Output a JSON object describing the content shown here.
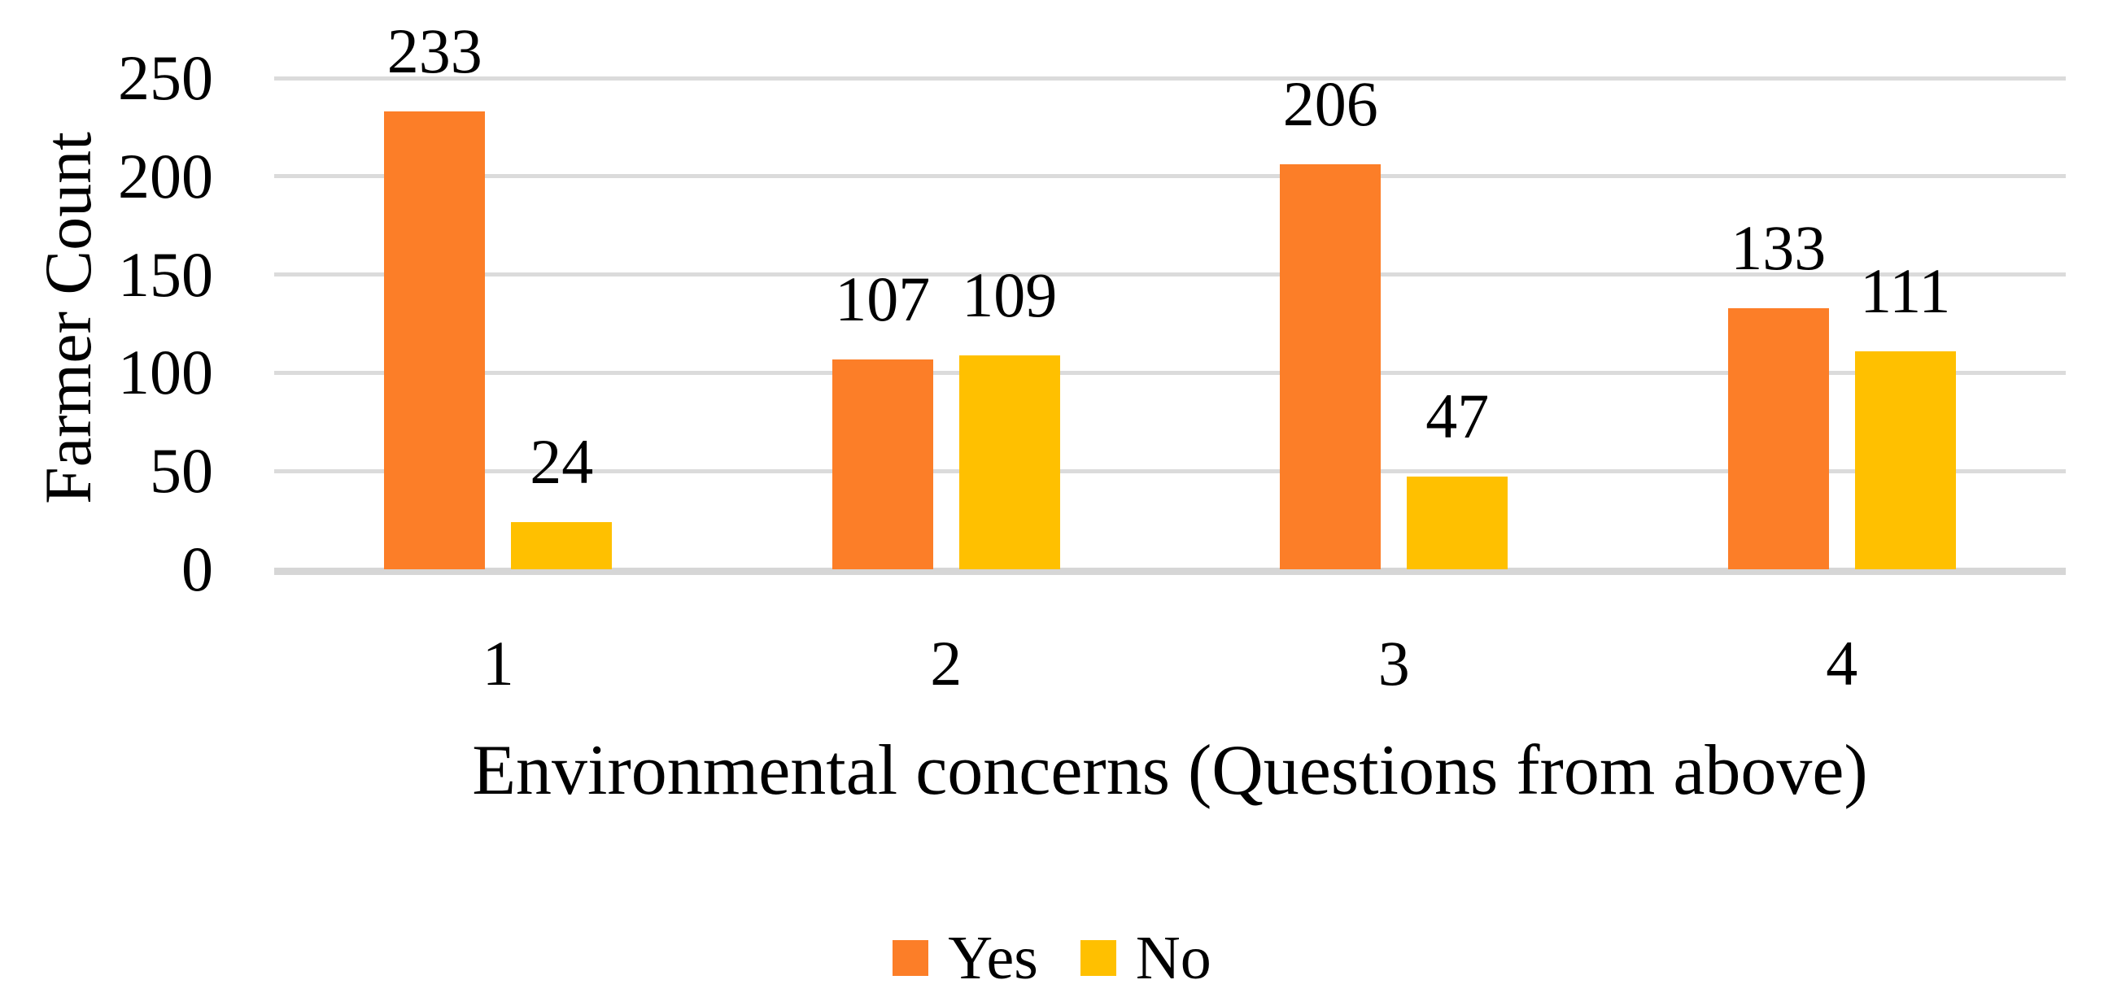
{
  "chart_data": {
    "type": "bar",
    "categories": [
      "1",
      "2",
      "3",
      "4"
    ],
    "series": [
      {
        "name": "Yes",
        "color": "#FC7E28",
        "values": [
          233,
          107,
          206,
          133
        ]
      },
      {
        "name": "No",
        "color": "#FFC000",
        "values": [
          24,
          109,
          47,
          111
        ]
      }
    ],
    "data_labels": {
      "Yes": [
        "233",
        "107",
        "206",
        "133"
      ],
      "No": [
        "24",
        "109",
        "47",
        "111"
      ]
    },
    "xlabel": "Environmental concerns (Questions from above)",
    "ylabel": "Farmer Count",
    "ylim": [
      0,
      250
    ],
    "yticks": [
      0,
      50,
      100,
      150,
      200,
      250
    ],
    "grid": "horizontal",
    "legend_position": "bottom",
    "colors": {
      "gridline": "#DBDBDB",
      "axis_line": "#D6D6D6",
      "text": "#000000",
      "background": "#FFFFFF"
    }
  }
}
